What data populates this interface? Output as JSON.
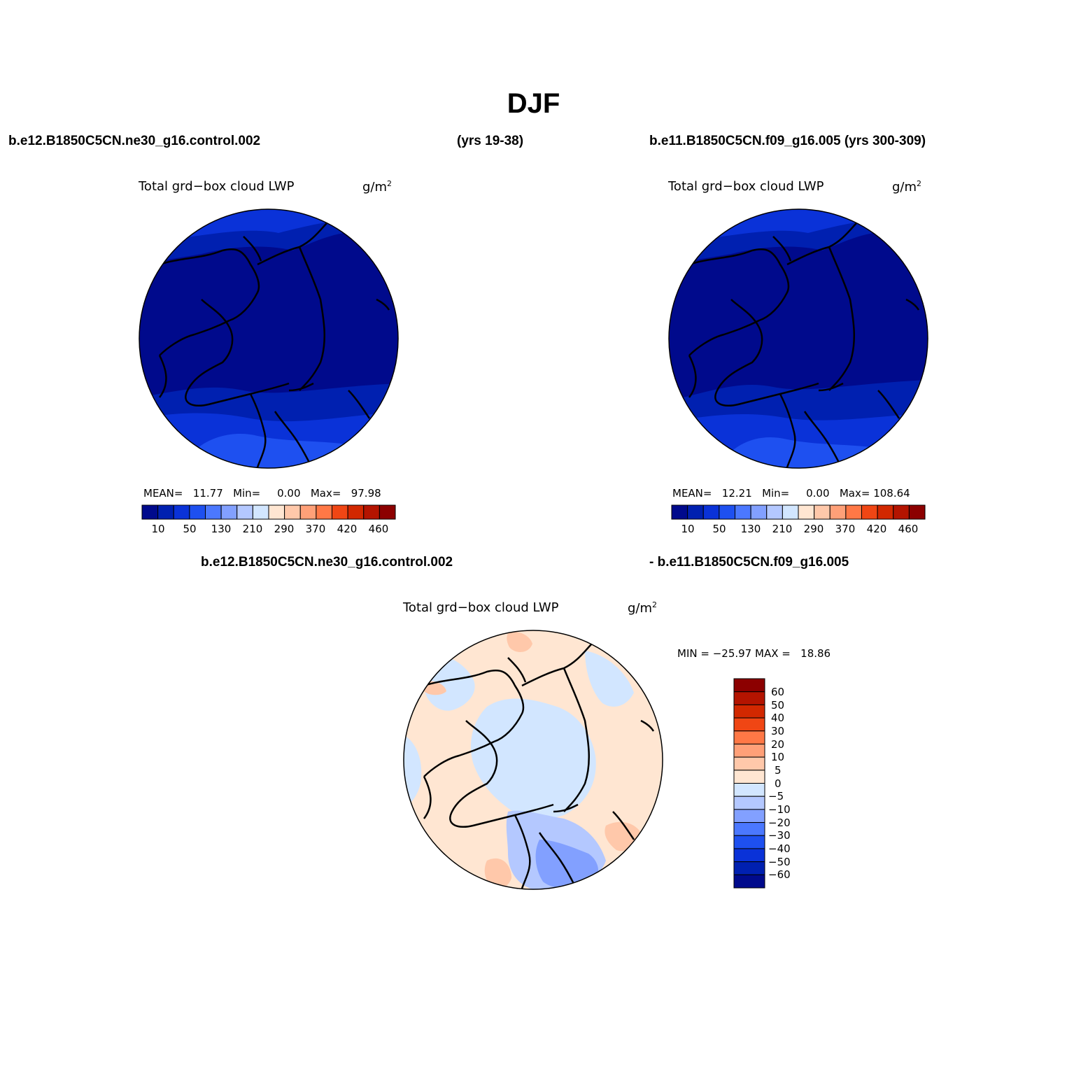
{
  "title": "DJF",
  "header": {
    "left_case": "b.e12.B1850C5CN.ne30_g16.control.002",
    "left_years": "(yrs 19-38)",
    "right_case": "b.e11.B1850C5CN.f09_g16.005 (yrs 300-309)",
    "diff_left": "b.e12.B1850C5CN.ne30_g16.control.002",
    "diff_right": "- b.e11.B1850C5CN.f09_g16.005"
  },
  "variable": "Total grd−box cloud LWP",
  "units": "g/m",
  "units_sup": "2",
  "panels": [
    {
      "stats": {
        "mean_label": "MEAN=",
        "mean": "11.77",
        "min_label": "Min=",
        "min": "0.00",
        "max_label": "Max=",
        "max": "97.98"
      }
    },
    {
      "stats": {
        "mean_label": "MEAN=",
        "mean": "12.21",
        "min_label": "Min=",
        "min": "0.00",
        "max_label": "Max=",
        "max": "108.64"
      }
    }
  ],
  "diff_stats": {
    "min_label": "MIN =",
    "min": "−25.97",
    "max_label": "MAX =",
    "max": "18.86"
  },
  "colorbar_abs": {
    "colors": [
      "#000a8c",
      "#0020b0",
      "#0a32d8",
      "#1e50f0",
      "#4b78ff",
      "#82a0ff",
      "#b4c8ff",
      "#d2e6ff",
      "#ffe6d2",
      "#ffc8aa",
      "#ffa078",
      "#ff7846",
      "#f04614",
      "#d22800",
      "#b41400",
      "#8c0000"
    ],
    "labels": [
      "10",
      "50",
      "130",
      "210",
      "290",
      "370",
      "420",
      "460"
    ]
  },
  "colorbar_diff": {
    "colors": [
      "#000a8c",
      "#0020b0",
      "#0a32d8",
      "#1e50f0",
      "#4b78ff",
      "#82a0ff",
      "#b4c8ff",
      "#d2e6ff",
      "#ffe6d2",
      "#ffc8aa",
      "#ffa078",
      "#ff7846",
      "#f04614",
      "#d22800",
      "#b41400",
      "#8c0000"
    ],
    "labels": [
      "60",
      "50",
      "40",
      "30",
      "20",
      "10",
      "5",
      "0",
      "−5",
      "−10",
      "−20",
      "−30",
      "−40",
      "−50",
      "−60"
    ]
  },
  "map_colors": {
    "lwp_low": "#000a8c",
    "lwp_mid": "#0020b0",
    "lwp_high": "#0a32d8",
    "lwp_higher": "#1e50f0",
    "diff_pos": "#ffe6d2",
    "diff_pos2": "#ffc8aa",
    "diff_neg": "#d2e6ff",
    "diff_neg2": "#b4c8ff",
    "diff_neg3": "#82a0ff"
  }
}
